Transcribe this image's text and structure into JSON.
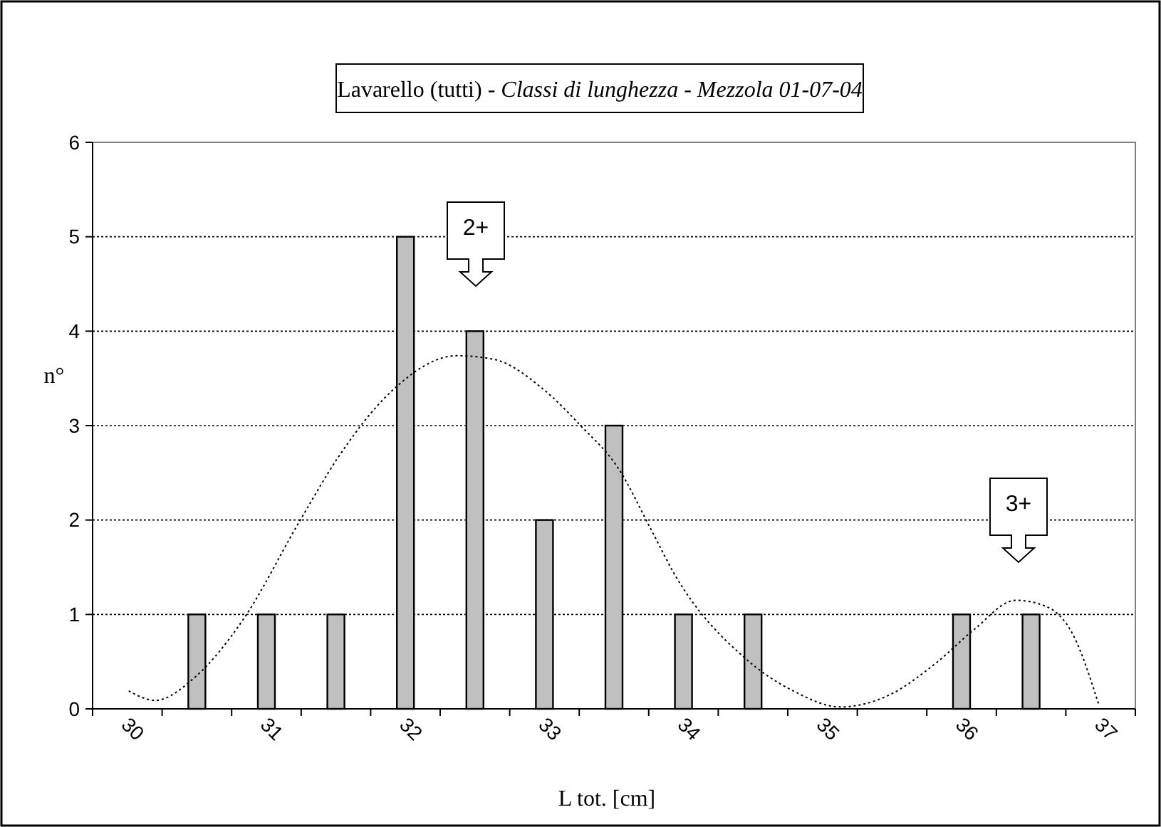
{
  "chart_data": {
    "type": "bar",
    "title": "Lavarello (tutti) - Classi di lunghezza - Mezzola 01-07-04",
    "xlabel": "L tot. [cm]",
    "ylabel": "n°",
    "x": [
      30.5,
      31,
      31.5,
      32,
      32.5,
      33,
      33.5,
      34,
      34.5,
      36,
      36.5
    ],
    "series": [
      {
        "color": "#c0c0c0",
        "values": [
          1,
          1,
          1,
          5,
          4,
          2,
          3,
          1,
          1,
          1,
          1
        ]
      },
      {
        "type": "line",
        "color": "#000000",
        "line_style": "dotted",
        "x": [
          30.01,
          30.2,
          30.49,
          30.83,
          31.24,
          31.51,
          31.89,
          32.37,
          32.64,
          32.98,
          33.26,
          33.53,
          33.77,
          33.93,
          34.44,
          34.79,
          35.13,
          35.47,
          35.82,
          36.09,
          36.39,
          36.6,
          36.8,
          36.99
        ],
        "values": [
          0.19,
          0.09,
          0.34,
          0.94,
          1.99,
          2.65,
          3.35,
          3.74,
          3.7,
          3.4,
          3.0,
          2.55,
          1.89,
          1.44,
          0.54,
          0.19,
          0.02,
          0.14,
          0.49,
          0.84,
          1.15,
          1.09,
          0.79,
          0.03
        ]
      }
    ],
    "annotations": [
      "2+",
      "3+"
    ],
    "xlim": [
      29.75,
      37.25
    ],
    "xticks": [
      {
        "value": 29.75,
        "label": null
      },
      30,
      {
        "value": 30.25,
        "label": null
      },
      {
        "value": 30.75,
        "label": null
      },
      31,
      {
        "value": 31.25,
        "label": null
      },
      {
        "value": 31.75,
        "label": null
      },
      32,
      {
        "value": 32.25,
        "label": null
      },
      {
        "value": 32.75,
        "label": null
      },
      33,
      {
        "value": 33.25,
        "label": null
      },
      {
        "value": 33.75,
        "label": null
      },
      34,
      {
        "value": 34.25,
        "label": null
      },
      {
        "value": 34.75,
        "label": null
      },
      35,
      {
        "value": 35.25,
        "label": null
      },
      {
        "value": 35.75,
        "label": null
      },
      36,
      {
        "value": 36.25,
        "label": null
      },
      {
        "value": 36.75,
        "label": null
      },
      37,
      {
        "value": 37.25,
        "label": null
      }
    ],
    "ylim": [
      0,
      6
    ],
    "yticks": [
      0,
      1,
      2,
      3,
      4,
      5,
      6
    ],
    "grid": "y"
  }
}
